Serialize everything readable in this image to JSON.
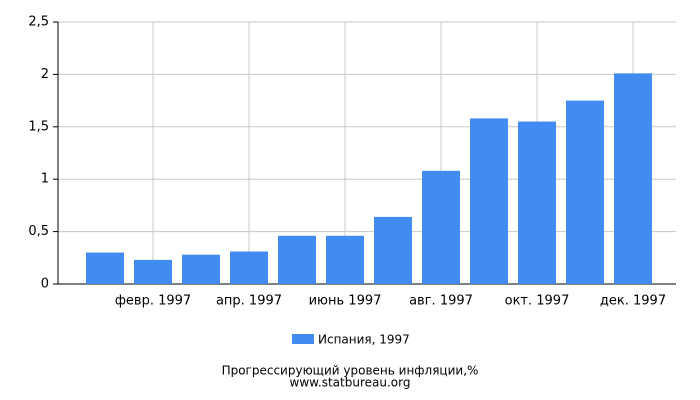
{
  "chart_data": {
    "type": "bar",
    "title": "Прогрессирующий уровень инфляции,%",
    "source": "www.statbureau.org",
    "categories": [
      null,
      "февр. 1997",
      null,
      "апр. 1997",
      null,
      "июнь 1997",
      null,
      "авг. 1997",
      null,
      "окт. 1997",
      null,
      "дек. 1997"
    ],
    "series": [
      {
        "name": "Испания, 1997",
        "color": "#418cf0",
        "values": [
          0.3,
          0.23,
          0.28,
          0.31,
          0.46,
          0.46,
          0.64,
          1.08,
          1.58,
          1.55,
          1.75,
          2.01
        ]
      }
    ],
    "ylim": [
      0,
      2.5
    ],
    "yticks": [
      0,
      {
        "value": 0.5,
        "label": "0,5"
      },
      1,
      {
        "value": 1.5,
        "label": "1,5"
      },
      2,
      {
        "value": 2.5,
        "label": "2,5"
      }
    ],
    "grid": true
  }
}
